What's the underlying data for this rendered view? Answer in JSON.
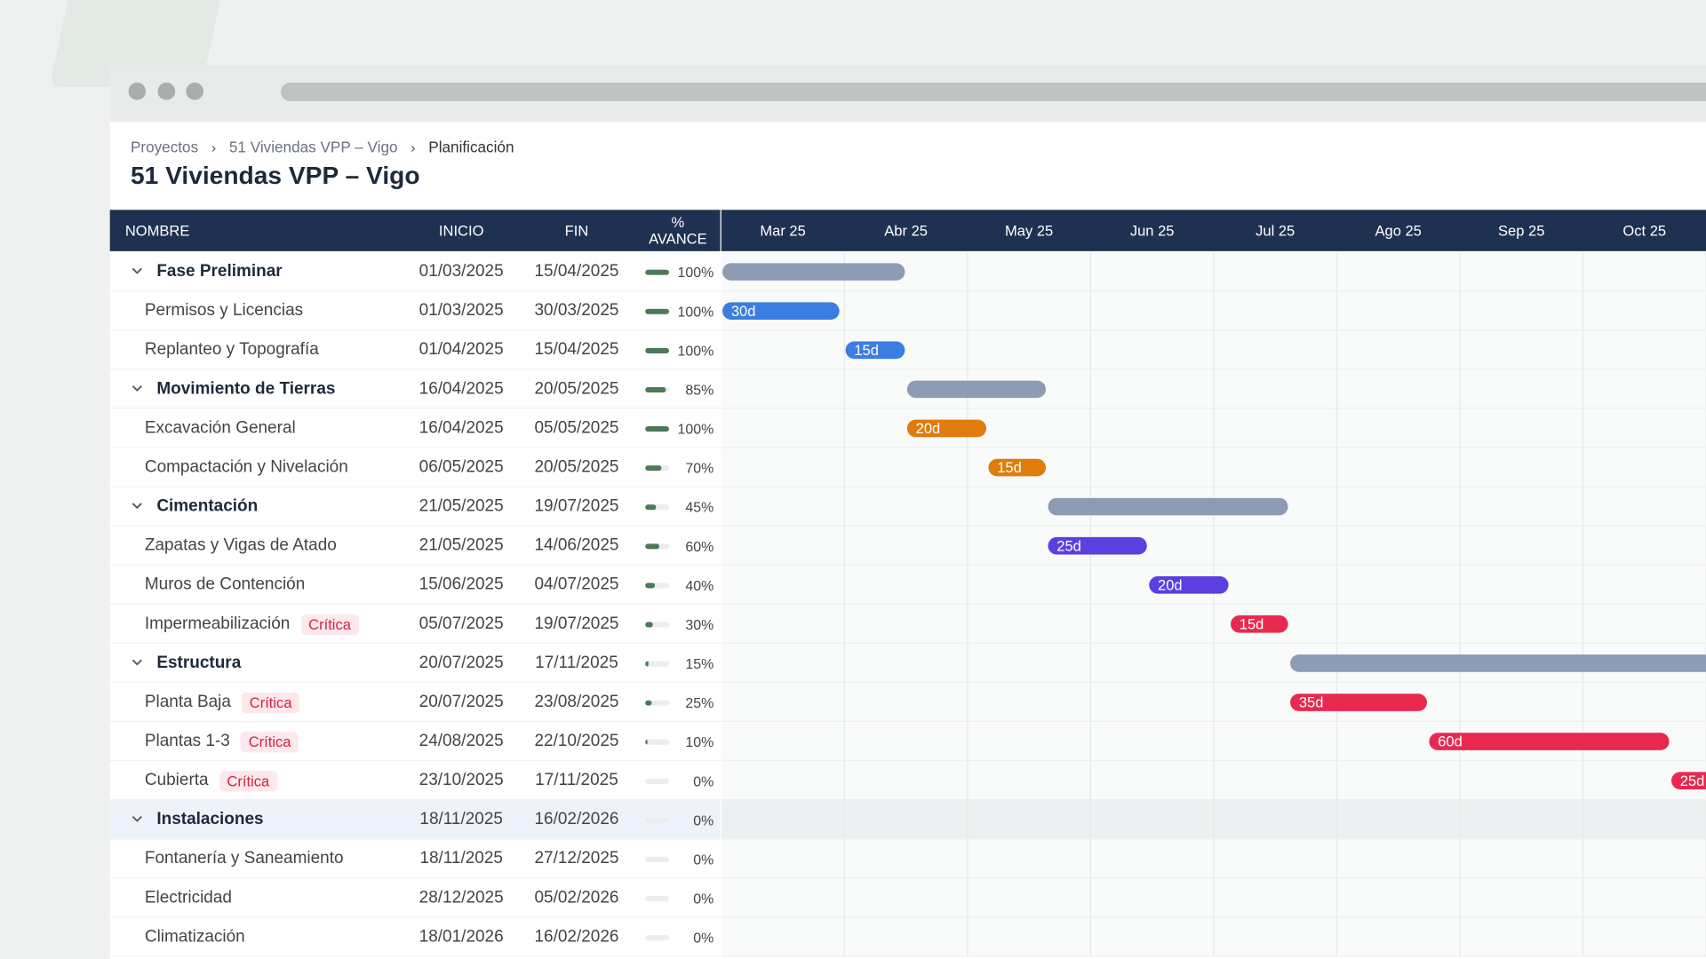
{
  "breadcrumb": [
    "Proyectos",
    "51 Viviendas VPP – Vigo",
    "Planificación"
  ],
  "title": "51 Viviendas VPP – Vigo",
  "columns": [
    "NOMBRE",
    "INICIO",
    "FIN",
    "% AVANCE"
  ],
  "months": [
    "Mar 25",
    "Abr 25",
    "May 25",
    "Jun 25",
    "Jul 25",
    "Ago 25",
    "Sep 25",
    "Oct 25"
  ],
  "rows": [
    {
      "name": "Fase Preliminar",
      "group": true,
      "start": "01/03/2025",
      "end": "15/04/2025",
      "progress": 100,
      "progress_label": "100%",
      "color": "#8e9bb5"
    },
    {
      "name": "Permisos y Licencias",
      "start": "01/03/2025",
      "end": "30/03/2025",
      "progress": 100,
      "progress_label": "100%",
      "duration": "30d",
      "color": "#3b7de0"
    },
    {
      "name": "Replanteo y Topografía",
      "start": "01/04/2025",
      "end": "15/04/2025",
      "progress": 100,
      "progress_label": "100%",
      "duration": "15d",
      "color": "#3b7de0"
    },
    {
      "name": "Movimiento de Tierras",
      "group": true,
      "start": "16/04/2025",
      "end": "20/05/2025",
      "progress": 85,
      "progress_label": "85%",
      "color": "#8e9bb5"
    },
    {
      "name": "Excavación General",
      "start": "16/04/2025",
      "end": "05/05/2025",
      "progress": 100,
      "progress_label": "100%",
      "duration": "20d",
      "color": "#e07b0c"
    },
    {
      "name": "Compactación y Nivelación",
      "start": "06/05/2025",
      "end": "20/05/2025",
      "progress": 70,
      "progress_label": "70%",
      "duration": "15d",
      "color": "#e07b0c"
    },
    {
      "name": "Cimentación",
      "group": true,
      "start": "21/05/2025",
      "end": "19/07/2025",
      "progress": 45,
      "progress_label": "45%",
      "color": "#8e9bb5"
    },
    {
      "name": "Zapatas y Vigas de Atado",
      "start": "21/05/2025",
      "end": "14/06/2025",
      "progress": 60,
      "progress_label": "60%",
      "duration": "25d",
      "color": "#5b3fe0"
    },
    {
      "name": "Muros de Contención",
      "start": "15/06/2025",
      "end": "04/07/2025",
      "progress": 40,
      "progress_label": "40%",
      "duration": "20d",
      "color": "#5b3fe0"
    },
    {
      "name": "Impermeabilización",
      "tag": "Crítica",
      "start": "05/07/2025",
      "end": "19/07/2025",
      "progress": 30,
      "progress_label": "30%",
      "duration": "15d",
      "color": "#e8294f"
    },
    {
      "name": "Estructura",
      "group": true,
      "start": "20/07/2025",
      "end": "17/11/2025",
      "progress": 15,
      "progress_label": "15%",
      "color": "#8e9bb5"
    },
    {
      "name": "Planta Baja",
      "tag": "Crítica",
      "start": "20/07/2025",
      "end": "23/08/2025",
      "progress": 25,
      "progress_label": "25%",
      "duration": "35d",
      "color": "#e8294f"
    },
    {
      "name": "Plantas 1-3",
      "tag": "Crítica",
      "start": "24/08/2025",
      "end": "22/10/2025",
      "progress": 10,
      "progress_label": "10%",
      "duration": "60d",
      "color": "#e8294f"
    },
    {
      "name": "Cubierta",
      "tag": "Crítica",
      "start": "23/10/2025",
      "end": "17/11/2025",
      "progress": 0,
      "progress_label": "0%",
      "duration": "25d",
      "color": "#e8294f"
    },
    {
      "name": "Instalaciones",
      "group": true,
      "selected": true,
      "start": "18/11/2025",
      "end": "16/02/2026",
      "progress": 0,
      "progress_label": "0%",
      "color": "#8e9bb5"
    },
    {
      "name": "Fontanería y Saneamiento",
      "start": "18/11/2025",
      "end": "27/12/2025",
      "progress": 0,
      "progress_label": "0%",
      "color": "#3b7de0"
    },
    {
      "name": "Electricidad",
      "start": "28/12/2025",
      "end": "05/02/2026",
      "progress": 0,
      "progress_label": "0%",
      "color": "#3b7de0"
    },
    {
      "name": "Climatización",
      "start": "18/01/2026",
      "end": "16/02/2026",
      "progress": 0,
      "progress_label": "0%",
      "color": "#3b7de0"
    }
  ]
}
